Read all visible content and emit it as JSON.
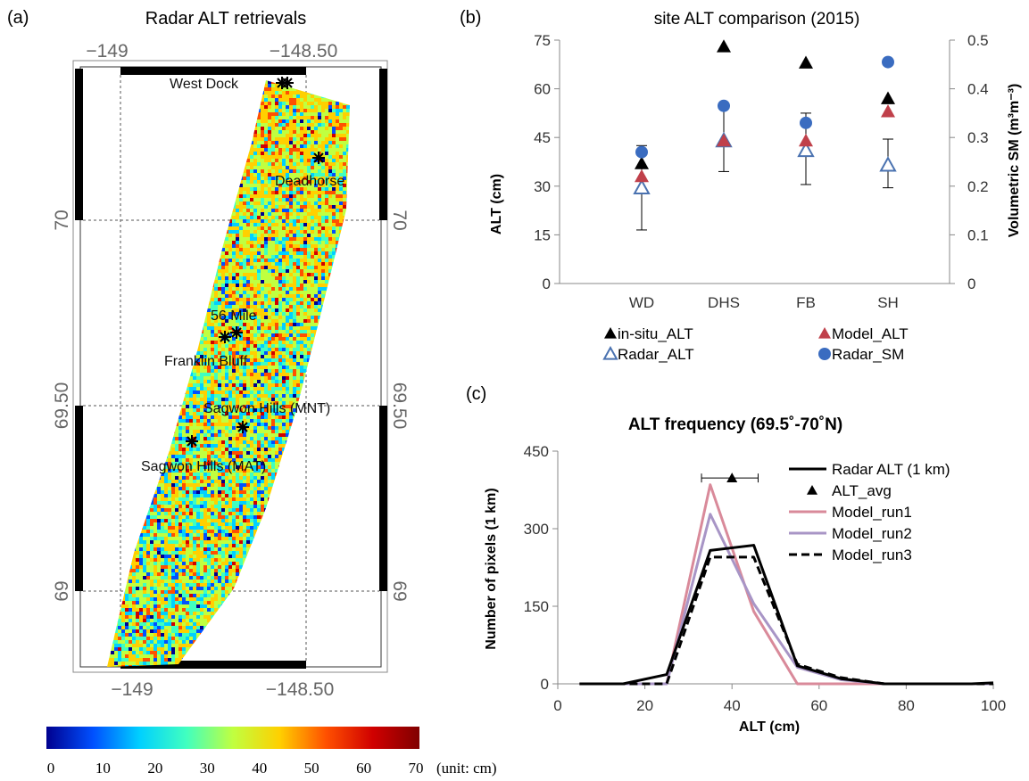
{
  "panels": {
    "a": {
      "letter": "(a)",
      "title": "Radar ALT retrievals",
      "lon_top": [
        "−149",
        "−148.50"
      ],
      "lon_bottom": [
        "−149",
        "−148.50"
      ],
      "lat_left": [
        "70",
        "69.50",
        "69"
      ],
      "lat_right": [
        "70",
        "69.50",
        "69"
      ],
      "sites": [
        "West Dock",
        "Deadhorse",
        "56 Mile",
        "Franklin Bluff",
        "Sagwon Hills (MNT)",
        "Sagwon Hills (MAT)"
      ]
    },
    "b": {
      "letter": "(b)"
    },
    "c": {
      "letter": "(c)"
    }
  },
  "colorbar": {
    "ticks": [
      "0",
      "10",
      "20",
      "30",
      "40",
      "50",
      "60",
      "70"
    ],
    "unit": "(unit: cm)",
    "colors": [
      "#00008f",
      "#0050ff",
      "#00d0ff",
      "#40ffc0",
      "#c0ff40",
      "#ffd000",
      "#ff5000",
      "#d00000",
      "#800000"
    ]
  },
  "chart_data": [
    {
      "panel": "b",
      "type": "scatter",
      "title": "site ALT comparison (2015)",
      "xlabel": "",
      "ylabel": "ALT (cm)",
      "y2label": "Volumetric SM (m³m⁻³)",
      "categories": [
        "WD",
        "DHS",
        "FB",
        "SH"
      ],
      "ylim": [
        0,
        75
      ],
      "yticks": [
        "0",
        "15",
        "30",
        "45",
        "60",
        "75"
      ],
      "y2lim": [
        0,
        0.5
      ],
      "y2ticks": [
        "0",
        "0.1",
        "0.2",
        "0.3",
        "0.4",
        "0.5"
      ],
      "series": [
        {
          "name": "in-situ_ALT",
          "axis": "left",
          "marker": "triangle-filled",
          "color": "#000000",
          "values": [
            37,
            73,
            68,
            57
          ]
        },
        {
          "name": "Radar_ALT",
          "axis": "left",
          "marker": "triangle-open",
          "color": "#4a72b0",
          "values": [
            29.5,
            44,
            41,
            36.5
          ],
          "error_low": [
            16.5,
            34.5,
            30.5,
            29.5
          ],
          "error_high": [
            42.5,
            54,
            52.5,
            44.5
          ]
        },
        {
          "name": "Model_ALT",
          "axis": "left",
          "marker": "triangle-filled",
          "color": "#c0404a",
          "values": [
            33,
            44,
            44,
            53
          ]
        },
        {
          "name": "Radar_SM",
          "axis": "right",
          "marker": "circle",
          "color": "#3a6cc0",
          "values": [
            0.27,
            0.365,
            0.33,
            0.455
          ]
        }
      ],
      "legend": "bottom"
    },
    {
      "panel": "c",
      "type": "line",
      "title": "ALT frequency (69.5˚-70˚N)",
      "xlabel": "ALT (cm)",
      "ylabel": "Number of pixels (1 km)",
      "xlim": [
        0,
        100
      ],
      "xticks": [
        "0",
        "20",
        "40",
        "60",
        "80",
        "100"
      ],
      "ylim": [
        0,
        450
      ],
      "yticks": [
        "0",
        "150",
        "300",
        "450"
      ],
      "x": [
        5,
        15,
        25,
        35,
        45,
        55,
        65,
        75,
        85,
        95,
        100
      ],
      "series": [
        {
          "name": "Radar ALT (1 km)",
          "color": "#000000",
          "style": "solid",
          "values": [
            0,
            0,
            18,
            258,
            268,
            35,
            10,
            0,
            0,
            0,
            2
          ]
        },
        {
          "name": "Model_run1",
          "color": "#d98a9a",
          "style": "solid",
          "values": [
            0,
            0,
            0,
            385,
            140,
            0,
            0,
            0,
            0,
            0,
            0
          ]
        },
        {
          "name": "Model_run2",
          "color": "#a895c6",
          "style": "solid",
          "values": [
            0,
            0,
            0,
            328,
            155,
            32,
            8,
            0,
            0,
            0,
            0
          ]
        },
        {
          "name": "Model_run3",
          "color": "#000000",
          "style": "dashed",
          "values": [
            0,
            0,
            0,
            245,
            245,
            38,
            12,
            0,
            0,
            0,
            0
          ]
        }
      ],
      "markers": [
        {
          "name": "ALT_avg",
          "x": 40,
          "y": 398,
          "xerr": [
            33,
            46
          ]
        }
      ],
      "legend": "top-right"
    }
  ]
}
